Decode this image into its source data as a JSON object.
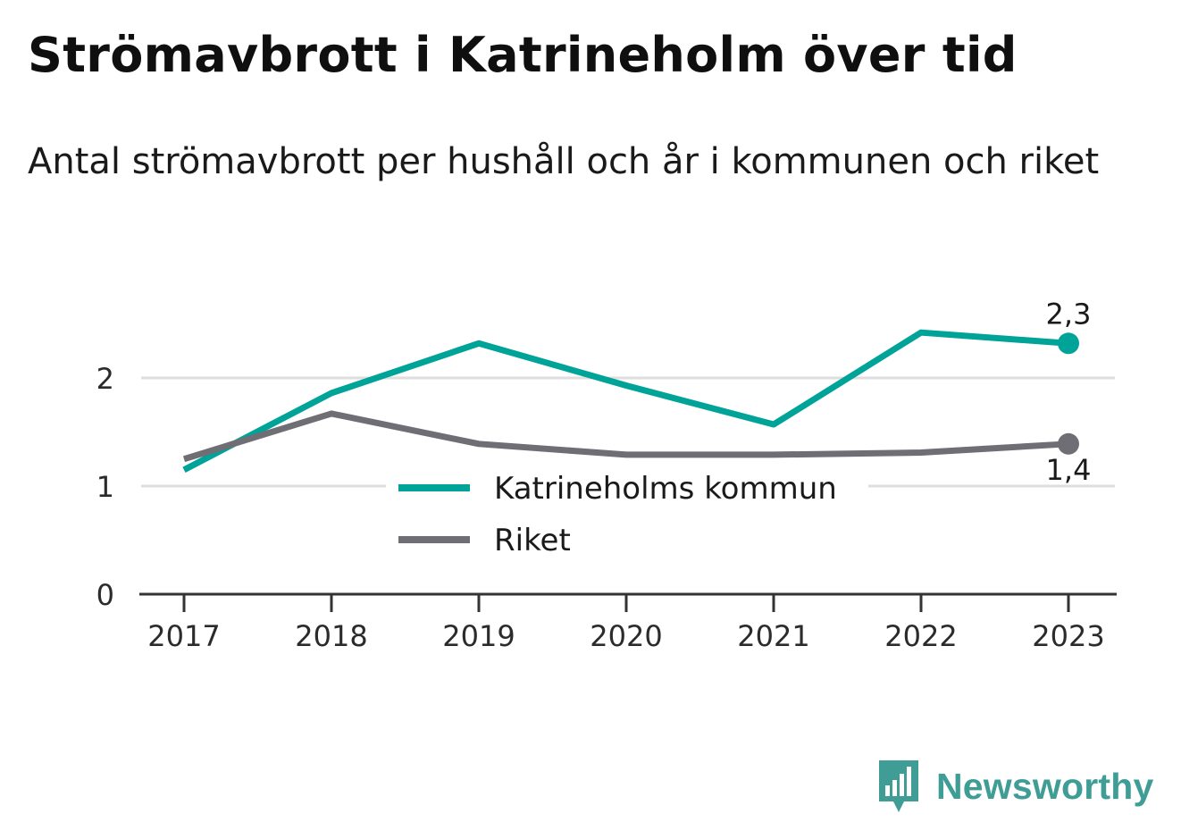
{
  "header": {
    "title": "Strömavbrott i Katrineholm över tid",
    "subtitle": "Antal strömavbrott per hushåll och år i kommunen och riket"
  },
  "chart_data": {
    "type": "line",
    "x": [
      "2017",
      "2018",
      "2019",
      "2020",
      "2021",
      "2022",
      "2023"
    ],
    "series": [
      {
        "name": "Katrineholms kommun",
        "color": "#00a398",
        "values": [
          1.15,
          1.86,
          2.32,
          1.93,
          1.57,
          2.42,
          2.32
        ],
        "end_label": "2,3"
      },
      {
        "name": "Riket",
        "color": "#6f6e74",
        "values": [
          1.25,
          1.67,
          1.39,
          1.29,
          1.29,
          1.31,
          1.39
        ],
        "end_label": "1,4"
      }
    ],
    "yticks": [
      0,
      1,
      2
    ],
    "ytick_labels": [
      "0",
      "1",
      "2"
    ],
    "ylim": [
      0,
      2.6
    ],
    "grid": true,
    "legend_position": "center"
  },
  "logo": {
    "text": "Newsworthy",
    "color": "#3f9d96"
  }
}
